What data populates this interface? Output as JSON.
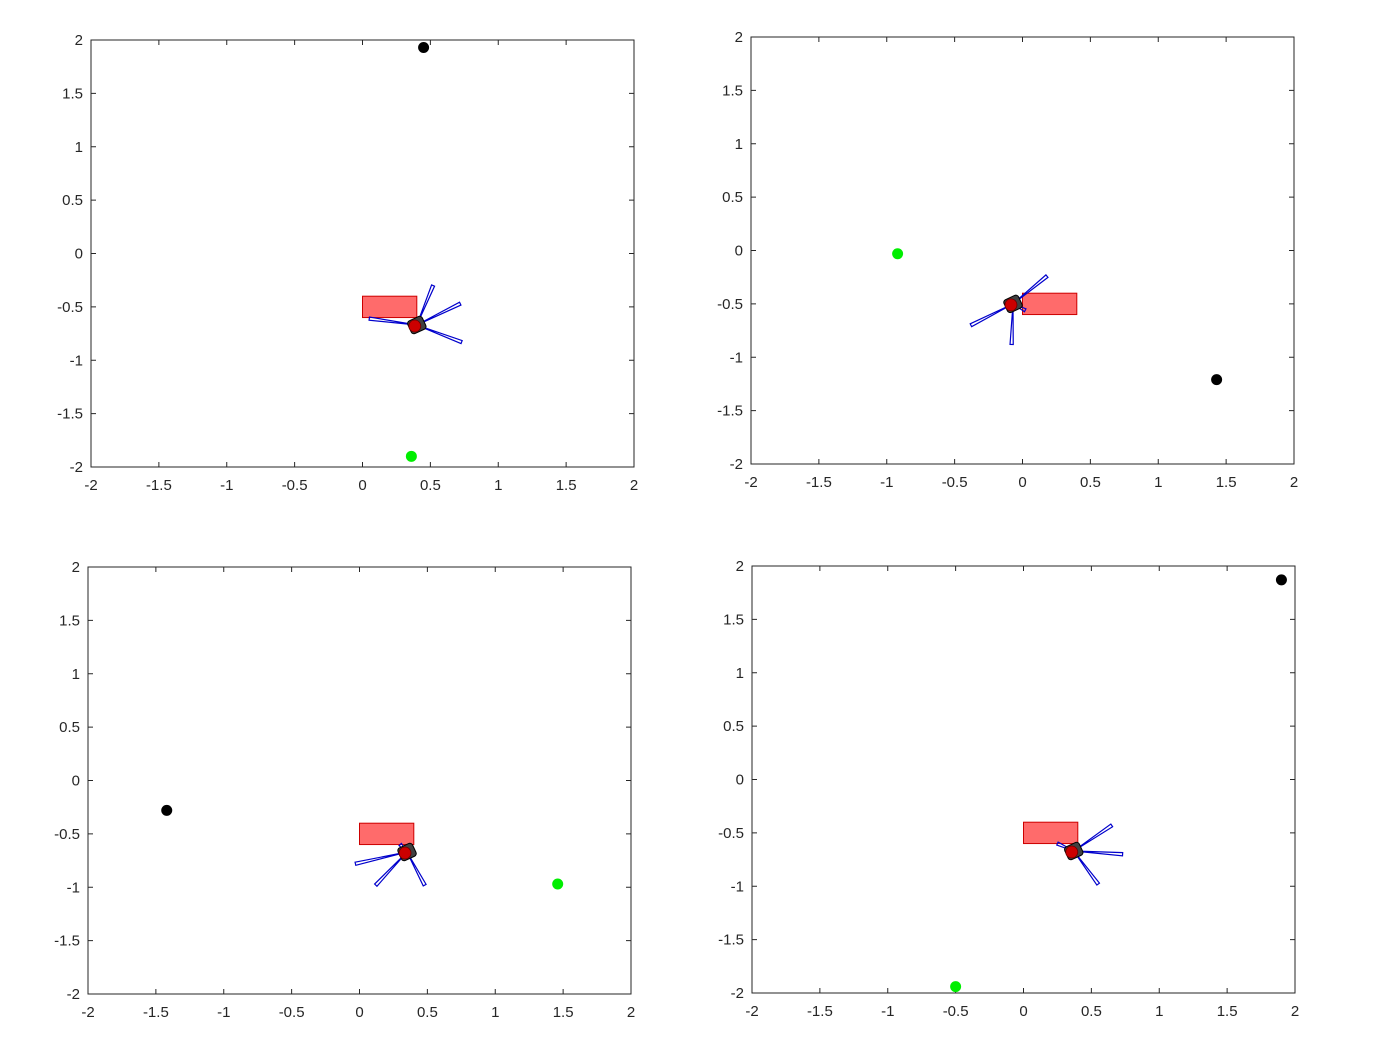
{
  "colors": {
    "obstacle_fill": "#ff6b6b",
    "obstacle_edge": "#cc0000",
    "robot_body": "#cc0000",
    "robot_chassis": "#404040",
    "sensor_ray": "#0000cc",
    "start_marker": "#000000",
    "goal_marker": "#00ee00"
  },
  "chart_data": [
    {
      "type": "scatter",
      "xlim": [
        -2,
        2
      ],
      "ylim": [
        -2,
        2
      ],
      "xticks": [
        "-2",
        "-1.5",
        "-1",
        "-0.5",
        "0",
        "0.5",
        "1",
        "1.5",
        "2"
      ],
      "yticks": [
        "2",
        "1.5",
        "1",
        "0.5",
        "0",
        "-0.5",
        "-1",
        "-1.5",
        "-2"
      ],
      "grid": false,
      "obstacle": {
        "x": [
          0,
          0.4
        ],
        "y": [
          -0.6,
          -0.4
        ]
      },
      "robot": {
        "x": 0.4,
        "y": -0.67
      },
      "sensor_ends": [
        [
          0.52,
          -0.3
        ],
        [
          0.72,
          -0.47
        ],
        [
          0.73,
          -0.83
        ],
        [
          0.05,
          -0.61
        ]
      ],
      "black_point": {
        "x": 0.45,
        "y": 1.93
      },
      "green_point": {
        "x": 0.36,
        "y": -1.9
      }
    },
    {
      "type": "scatter",
      "xlim": [
        -2,
        2
      ],
      "ylim": [
        -2,
        2
      ],
      "xticks": [
        "-2",
        "-1.5",
        "-1",
        "-0.5",
        "0",
        "0.5",
        "1",
        "1.5",
        "2"
      ],
      "yticks": [
        "2",
        "1.5",
        "1",
        "0.5",
        "0",
        "-0.5",
        "-1",
        "-1.5",
        "-2"
      ],
      "grid": false,
      "obstacle": {
        "x": [
          0,
          0.4
        ],
        "y": [
          -0.6,
          -0.4
        ]
      },
      "robot": {
        "x": -0.07,
        "y": -0.5
      },
      "sensor_ends": [
        [
          0.18,
          -0.24
        ],
        [
          -0.38,
          -0.7
        ],
        [
          -0.08,
          -0.88
        ],
        [
          0.02,
          -0.56
        ]
      ],
      "black_point": {
        "x": 1.43,
        "y": -1.21
      },
      "green_point": {
        "x": -0.92,
        "y": -0.03
      }
    },
    {
      "type": "scatter",
      "xlim": [
        -2,
        2
      ],
      "ylim": [
        -2,
        2
      ],
      "xticks": [
        "-2",
        "-1.5",
        "-1",
        "-0.5",
        "0",
        "0.5",
        "1",
        "1.5",
        "2"
      ],
      "yticks": [
        "2",
        "1.5",
        "1",
        "0.5",
        "0",
        "-0.5",
        "-1",
        "-1.5",
        "-2"
      ],
      "grid": false,
      "obstacle": {
        "x": [
          0,
          0.4
        ],
        "y": [
          -0.6,
          -0.4
        ]
      },
      "robot": {
        "x": 0.35,
        "y": -0.67
      },
      "sensor_ends": [
        [
          -0.03,
          -0.78
        ],
        [
          0.12,
          -0.98
        ],
        [
          0.48,
          -0.98
        ],
        [
          0.3,
          -0.6
        ]
      ],
      "black_point": {
        "x": -1.42,
        "y": -0.28
      },
      "green_point": {
        "x": 1.46,
        "y": -0.97
      }
    },
    {
      "type": "scatter",
      "xlim": [
        -2,
        2
      ],
      "ylim": [
        -2,
        2
      ],
      "xticks": [
        "-2",
        "-1.5",
        "-1",
        "-0.5",
        "0",
        "0.5",
        "1",
        "1.5",
        "2"
      ],
      "yticks": [
        "2",
        "1.5",
        "1",
        "0.5",
        "0",
        "-0.5",
        "-1",
        "-1.5",
        "-2"
      ],
      "grid": false,
      "obstacle": {
        "x": [
          0,
          0.4
        ],
        "y": [
          -0.6,
          -0.4
        ]
      },
      "robot": {
        "x": 0.37,
        "y": -0.67
      },
      "sensor_ends": [
        [
          0.65,
          -0.43
        ],
        [
          0.73,
          -0.7
        ],
        [
          0.55,
          -0.98
        ],
        [
          0.25,
          -0.6
        ]
      ],
      "black_point": {
        "x": 1.9,
        "y": 1.87
      },
      "green_point": {
        "x": -0.5,
        "y": -1.94
      }
    }
  ]
}
